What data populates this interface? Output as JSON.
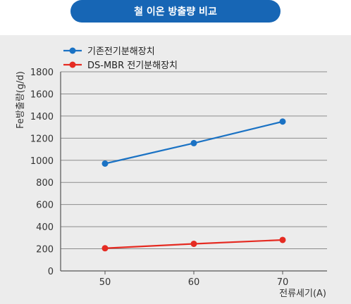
{
  "title": "철 이온 방출량 비교",
  "colors": {
    "title_bg": "#1766b5",
    "panel_bg": "#ececec",
    "series1": "#1a72c4",
    "series2": "#e52b22",
    "grid": "#8c8c8c"
  },
  "chart_data": {
    "type": "line",
    "x": [
      50,
      60,
      70
    ],
    "xlabel": "전류세기(A)",
    "ylabel": "Fe방출량(g/d)",
    "ylim": [
      0,
      1800
    ],
    "yticks": [
      0,
      200,
      400,
      600,
      800,
      1000,
      1200,
      1400,
      1600,
      1800
    ],
    "xticks": [
      "50",
      "60",
      "70"
    ],
    "grid": true,
    "legend_position": "top-left",
    "series": [
      {
        "name": "기존전기분해장치",
        "values": [
          970,
          1155,
          1350
        ],
        "color": "#1a72c4"
      },
      {
        "name": "DS-MBR 전기분해장치",
        "values": [
          205,
          245,
          280
        ],
        "color": "#e52b22"
      }
    ]
  }
}
